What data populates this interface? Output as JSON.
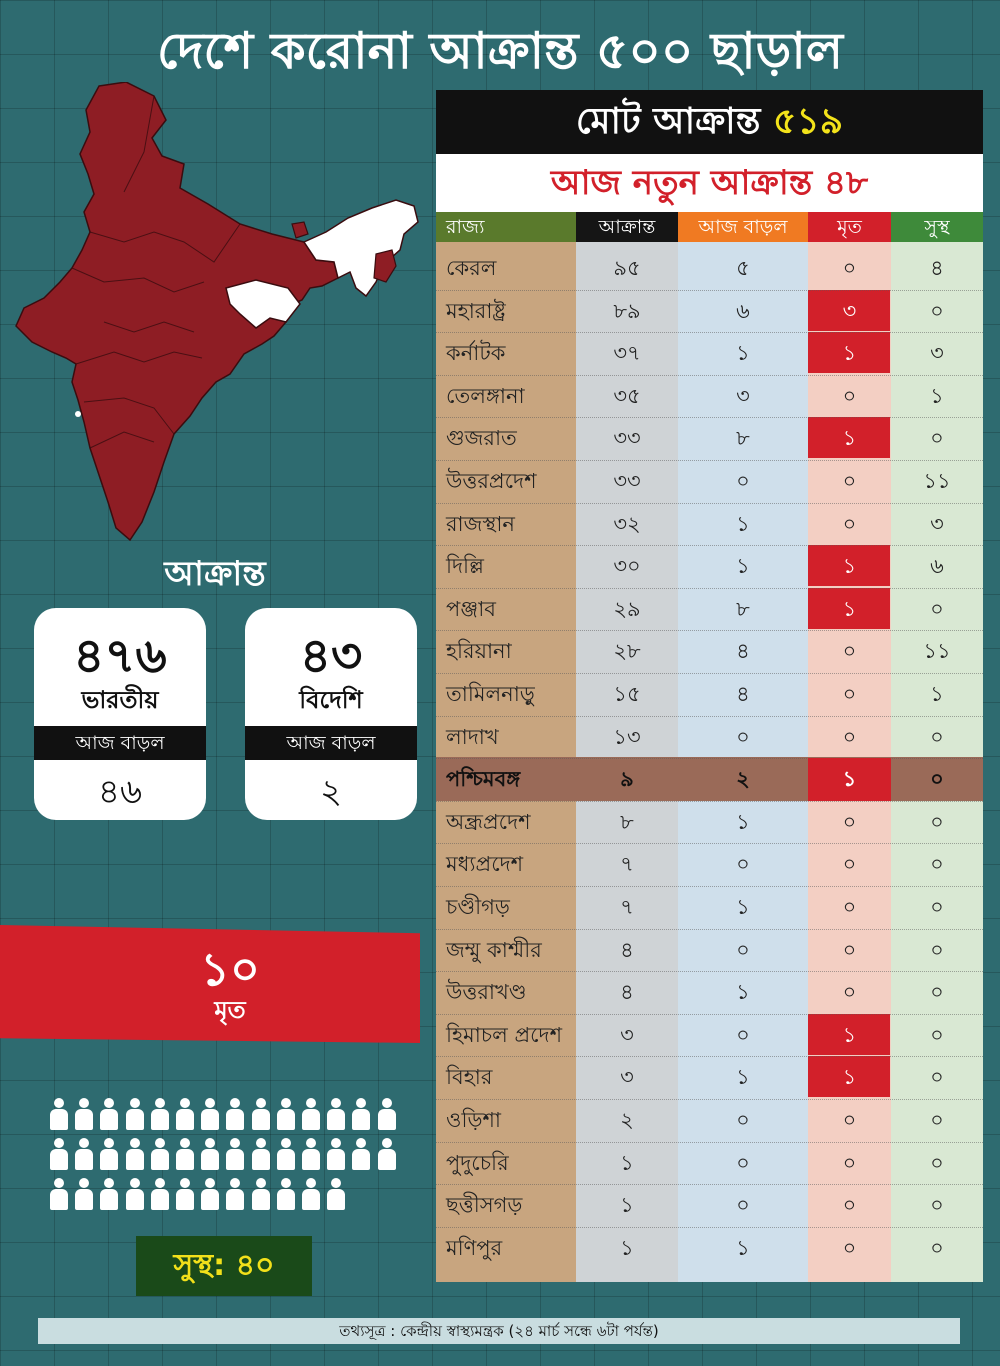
{
  "title": "দেশে করোনা আক্রান্ত ৫০০ ছাড়াল",
  "infected_heading": "আক্রান্ত",
  "cards": [
    {
      "number": "৪৭৬",
      "label": "ভারতীয়",
      "today_label": "আজ বাড়ল",
      "today_value": "৪৬"
    },
    {
      "number": "৪৩",
      "label": "বিদেশি",
      "today_label": "আজ বাড়ল",
      "today_value": "২"
    }
  ],
  "deaths": {
    "number": "১০",
    "label": "মৃত"
  },
  "recovered": "সুস্থ: ৪০",
  "people_count": 40,
  "table": {
    "total_label": "মোট আক্রান্ত",
    "total_value": "৫১৯",
    "new_label": "আজ নতুন আক্রান্ত ৪৮",
    "headers": [
      "রাজ্য",
      "আক্রান্ত",
      "আজ বাড়ল",
      "মৃত",
      "সুস্থ"
    ],
    "header_colors": [
      "#5a7a2c",
      "#151515",
      "#f07a22",
      "#d2202a",
      "#3e8a3a"
    ],
    "column_colors": [
      "#c8a57f",
      "#cfd3d6",
      "#cfdfeb",
      "#f3cfc3",
      "#d9e8d3"
    ],
    "highlight_color": "#d2202a",
    "highlight_row_color": "#9a6a58",
    "highlight_state": "পশ্চিমবঙ্গ",
    "rows": [
      [
        "কেরল",
        "৯৫",
        "৫",
        "০",
        "৪"
      ],
      [
        "মহারাষ্ট্র",
        "৮৯",
        "৬",
        "৩",
        "০"
      ],
      [
        "কর্নাটক",
        "৩৭",
        "১",
        "১",
        "৩"
      ],
      [
        "তেলঙ্গানা",
        "৩৫",
        "৩",
        "০",
        "১"
      ],
      [
        "গুজরাত",
        "৩৩",
        "৮",
        "১",
        "০"
      ],
      [
        "উত্তরপ্রদেশ",
        "৩৩",
        "০",
        "০",
        "১১"
      ],
      [
        "রাজস্থান",
        "৩২",
        "১",
        "০",
        "৩"
      ],
      [
        "দিল্লি",
        "৩০",
        "১",
        "১",
        "৬"
      ],
      [
        "পঞ্জাব",
        "২৯",
        "৮",
        "১",
        "০"
      ],
      [
        "হরিয়ানা",
        "২৮",
        "৪",
        "০",
        "১১"
      ],
      [
        "তামিলনাড়ু",
        "১৫",
        "৪",
        "০",
        "১"
      ],
      [
        "লাদাখ",
        "১৩",
        "০",
        "০",
        "০"
      ],
      [
        "পশ্চিমবঙ্গ",
        "৯",
        "২",
        "১",
        "০"
      ],
      [
        "অন্ধ্রপ্রদেশ",
        "৮",
        "১",
        "০",
        "০"
      ],
      [
        "মধ্যপ্রদেশ",
        "৭",
        "০",
        "০",
        "০"
      ],
      [
        "চণ্ডীগড়",
        "৭",
        "১",
        "০",
        "০"
      ],
      [
        "জম্মু কাশ্মীর",
        "৪",
        "০",
        "০",
        "০"
      ],
      [
        "উত্তরাখণ্ড",
        "৪",
        "১",
        "০",
        "০"
      ],
      [
        "হিমাচল প্রদেশ",
        "৩",
        "০",
        "১",
        "০"
      ],
      [
        "বিহার",
        "৩",
        "১",
        "১",
        "০"
      ],
      [
        "ওড়িশা",
        "২",
        "০",
        "০",
        "০"
      ],
      [
        "পুদুচেরি",
        "১",
        "০",
        "০",
        "০"
      ],
      [
        "ছত্তীসগড়",
        "১",
        "০",
        "০",
        "০"
      ],
      [
        "মণিপুর",
        "১",
        "১",
        "০",
        "০"
      ]
    ]
  },
  "source": "তথ্যসূত্র : কেন্দ্রীয় স্বাস্থ্যমন্ত্রক (২৪ মার্চ সন্ধে ৬টা পর্যন্ত)",
  "map_colors": {
    "affected": "#8e1d24",
    "unaffected": "#ffffff",
    "border": "#3a0c0f"
  }
}
